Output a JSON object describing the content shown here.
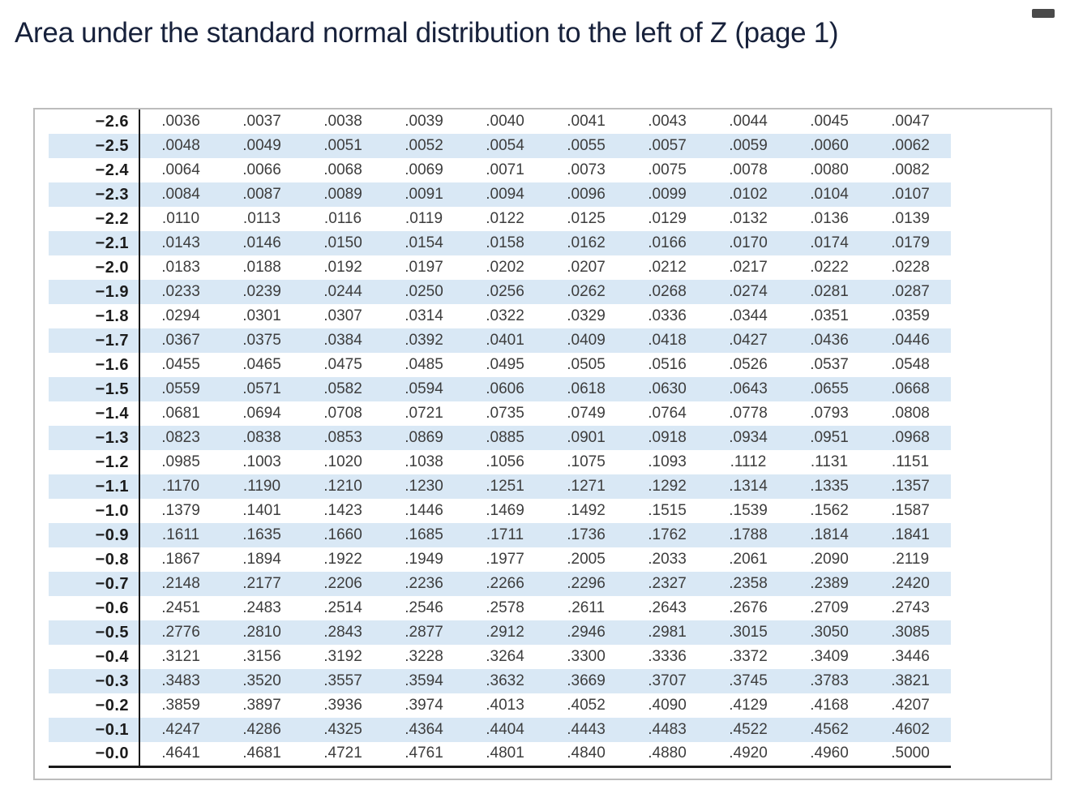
{
  "page": {
    "title": "Area under the standard normal distribution to the left of Z (page 1)"
  },
  "colors": {
    "title-color": "#17213b",
    "stripe": "#d9e8f5",
    "value-text": "#3d3d3d",
    "z-text": "#1c1c1c",
    "rule": "#1a1a1a",
    "container-border": "#bcbcbc",
    "pill": "#4a4a4a"
  },
  "z_table": {
    "rows": [
      {
        "z": "−2.6",
        "values": [
          ".0036",
          ".0037",
          ".0038",
          ".0039",
          ".0040",
          ".0041",
          ".0043",
          ".0044",
          ".0045",
          ".0047"
        ]
      },
      {
        "z": "−2.5",
        "values": [
          ".0048",
          ".0049",
          ".0051",
          ".0052",
          ".0054",
          ".0055",
          ".0057",
          ".0059",
          ".0060",
          ".0062"
        ]
      },
      {
        "z": "−2.4",
        "values": [
          ".0064",
          ".0066",
          ".0068",
          ".0069",
          ".0071",
          ".0073",
          ".0075",
          ".0078",
          ".0080",
          ".0082"
        ]
      },
      {
        "z": "−2.3",
        "values": [
          ".0084",
          ".0087",
          ".0089",
          ".0091",
          ".0094",
          ".0096",
          ".0099",
          ".0102",
          ".0104",
          ".0107"
        ]
      },
      {
        "z": "−2.2",
        "values": [
          ".0110",
          ".0113",
          ".0116",
          ".0119",
          ".0122",
          ".0125",
          ".0129",
          ".0132",
          ".0136",
          ".0139"
        ]
      },
      {
        "z": "−2.1",
        "values": [
          ".0143",
          ".0146",
          ".0150",
          ".0154",
          ".0158",
          ".0162",
          ".0166",
          ".0170",
          ".0174",
          ".0179"
        ]
      },
      {
        "z": "−2.0",
        "values": [
          ".0183",
          ".0188",
          ".0192",
          ".0197",
          ".0202",
          ".0207",
          ".0212",
          ".0217",
          ".0222",
          ".0228"
        ]
      },
      {
        "z": "−1.9",
        "values": [
          ".0233",
          ".0239",
          ".0244",
          ".0250",
          ".0256",
          ".0262",
          ".0268",
          ".0274",
          ".0281",
          ".0287"
        ]
      },
      {
        "z": "−1.8",
        "values": [
          ".0294",
          ".0301",
          ".0307",
          ".0314",
          ".0322",
          ".0329",
          ".0336",
          ".0344",
          ".0351",
          ".0359"
        ]
      },
      {
        "z": "−1.7",
        "values": [
          ".0367",
          ".0375",
          ".0384",
          ".0392",
          ".0401",
          ".0409",
          ".0418",
          ".0427",
          ".0436",
          ".0446"
        ]
      },
      {
        "z": "−1.6",
        "values": [
          ".0455",
          ".0465",
          ".0475",
          ".0485",
          ".0495",
          ".0505",
          ".0516",
          ".0526",
          ".0537",
          ".0548"
        ]
      },
      {
        "z": "−1.5",
        "values": [
          ".0559",
          ".0571",
          ".0582",
          ".0594",
          ".0606",
          ".0618",
          ".0630",
          ".0643",
          ".0655",
          ".0668"
        ]
      },
      {
        "z": "−1.4",
        "values": [
          ".0681",
          ".0694",
          ".0708",
          ".0721",
          ".0735",
          ".0749",
          ".0764",
          ".0778",
          ".0793",
          ".0808"
        ]
      },
      {
        "z": "−1.3",
        "values": [
          ".0823",
          ".0838",
          ".0853",
          ".0869",
          ".0885",
          ".0901",
          ".0918",
          ".0934",
          ".0951",
          ".0968"
        ]
      },
      {
        "z": "−1.2",
        "values": [
          ".0985",
          ".1003",
          ".1020",
          ".1038",
          ".1056",
          ".1075",
          ".1093",
          ".1112",
          ".1131",
          ".1151"
        ]
      },
      {
        "z": "−1.1",
        "values": [
          ".1170",
          ".1190",
          ".1210",
          ".1230",
          ".1251",
          ".1271",
          ".1292",
          ".1314",
          ".1335",
          ".1357"
        ]
      },
      {
        "z": "−1.0",
        "values": [
          ".1379",
          ".1401",
          ".1423",
          ".1446",
          ".1469",
          ".1492",
          ".1515",
          ".1539",
          ".1562",
          ".1587"
        ]
      },
      {
        "z": "−0.9",
        "values": [
          ".1611",
          ".1635",
          ".1660",
          ".1685",
          ".1711",
          ".1736",
          ".1762",
          ".1788",
          ".1814",
          ".1841"
        ]
      },
      {
        "z": "−0.8",
        "values": [
          ".1867",
          ".1894",
          ".1922",
          ".1949",
          ".1977",
          ".2005",
          ".2033",
          ".2061",
          ".2090",
          ".2119"
        ]
      },
      {
        "z": "−0.7",
        "values": [
          ".2148",
          ".2177",
          ".2206",
          ".2236",
          ".2266",
          ".2296",
          ".2327",
          ".2358",
          ".2389",
          ".2420"
        ]
      },
      {
        "z": "−0.6",
        "values": [
          ".2451",
          ".2483",
          ".2514",
          ".2546",
          ".2578",
          ".2611",
          ".2643",
          ".2676",
          ".2709",
          ".2743"
        ]
      },
      {
        "z": "−0.5",
        "values": [
          ".2776",
          ".2810",
          ".2843",
          ".2877",
          ".2912",
          ".2946",
          ".2981",
          ".3015",
          ".3050",
          ".3085"
        ]
      },
      {
        "z": "−0.4",
        "values": [
          ".3121",
          ".3156",
          ".3192",
          ".3228",
          ".3264",
          ".3300",
          ".3336",
          ".3372",
          ".3409",
          ".3446"
        ]
      },
      {
        "z": "−0.3",
        "values": [
          ".3483",
          ".3520",
          ".3557",
          ".3594",
          ".3632",
          ".3669",
          ".3707",
          ".3745",
          ".3783",
          ".3821"
        ]
      },
      {
        "z": "−0.2",
        "values": [
          ".3859",
          ".3897",
          ".3936",
          ".3974",
          ".4013",
          ".4052",
          ".4090",
          ".4129",
          ".4168",
          ".4207"
        ]
      },
      {
        "z": "−0.1",
        "values": [
          ".4247",
          ".4286",
          ".4325",
          ".4364",
          ".4404",
          ".4443",
          ".4483",
          ".4522",
          ".4562",
          ".4602"
        ]
      },
      {
        "z": "−0.0",
        "values": [
          ".4641",
          ".4681",
          ".4721",
          ".4761",
          ".4801",
          ".4840",
          ".4880",
          ".4920",
          ".4960",
          ".5000"
        ]
      }
    ]
  }
}
